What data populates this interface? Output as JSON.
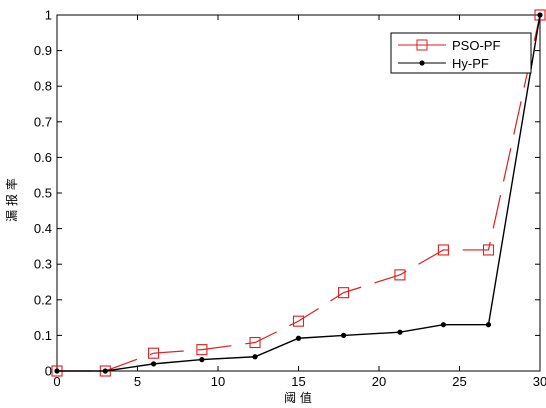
{
  "chart_data": {
    "type": "line",
    "title": "",
    "xlabel": "阈 值",
    "ylabel": "漏 报 率",
    "xlim": [
      0,
      30
    ],
    "ylim": [
      0,
      1
    ],
    "xticks": [
      "0",
      "5",
      "10",
      "15",
      "20",
      "25",
      "30"
    ],
    "yticks": [
      "0",
      "0.1",
      "0.2",
      "0.3",
      "0.4",
      "0.5",
      "0.6",
      "0.7",
      "0.8",
      "0.9",
      "1"
    ],
    "grid": false,
    "legend_position": "top-right",
    "series": [
      {
        "name": "PSO-PF",
        "color": "#e11d1d",
        "marker": "square",
        "line_style": "dashed",
        "x": [
          0,
          3,
          6,
          9,
          12.3,
          15,
          17.8,
          21.3,
          24,
          26.8,
          30
        ],
        "y": [
          0,
          0,
          0.05,
          0.06,
          0.08,
          0.14,
          0.22,
          0.27,
          0.34,
          0.34,
          1
        ]
      },
      {
        "name": "Hy-PF",
        "color": "#000000",
        "marker": "dot",
        "line_style": "solid",
        "x": [
          0,
          3,
          6,
          9,
          12.3,
          15,
          17.8,
          21.3,
          24,
          26.8,
          30
        ],
        "y": [
          0,
          0,
          0.02,
          0.032,
          0.04,
          0.092,
          0.1,
          0.109,
          0.13,
          0.13,
          1
        ]
      }
    ]
  }
}
